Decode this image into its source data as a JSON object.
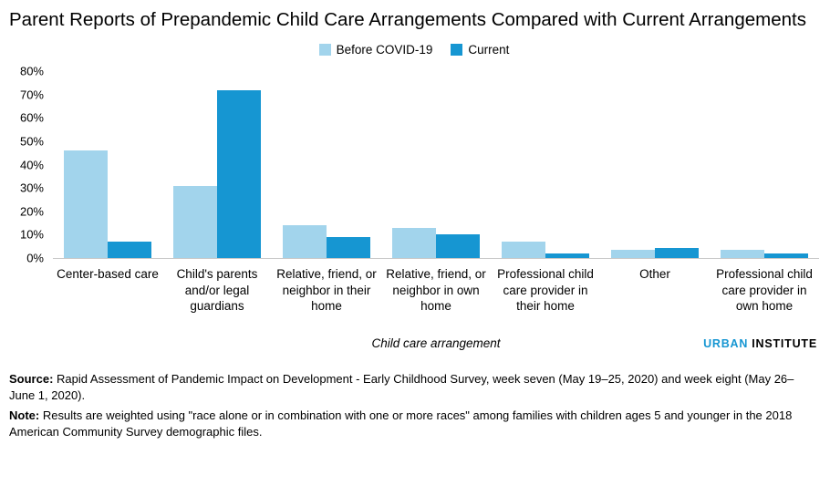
{
  "title": "Parent Reports of Prepandemic Child Care Arrangements Compared with Current Arrangements",
  "chart_data": {
    "type": "bar",
    "title": "Parent Reports of Prepandemic Child Care Arrangements Compared with Current Arrangements",
    "xlabel": "Child care arrangement",
    "ylabel": "",
    "ylim": [
      0,
      80
    ],
    "ytick_step": 10,
    "ytick_suffix": "%",
    "grid": false,
    "legend_position": "top-center",
    "categories": [
      "Center-based care",
      "Child's parents and/or legal guardians",
      "Relative, friend, or neighbor in their home",
      "Relative, friend, or neighbor in own home",
      "Professional child care provider in their home",
      "Other",
      "Professional child care provider in own home"
    ],
    "series": [
      {
        "name": "Before COVID-19",
        "color": "#a2d4ec",
        "values": [
          46,
          31,
          14,
          13,
          7,
          3.5,
          3.5
        ]
      },
      {
        "name": "Current",
        "color": "#1696d2",
        "values": [
          7,
          72,
          9,
          10,
          2,
          4.5,
          2
        ]
      }
    ]
  },
  "branding": {
    "urban": "URBAN",
    "institute": "INSTITUTE"
  },
  "notes": {
    "source_label": "Source:",
    "source_text": "Rapid Assessment of Pandemic Impact on Development - Early Childhood Survey, week seven (May 19–25, 2020) and week eight (May 26–June 1, 2020).",
    "note_label": "Note:",
    "note_text": "Results are weighted using \"race alone or in combination with one or more races\" among families with children ages 5 and younger in the 2018 American Community Survey demographic files."
  },
  "colors": {
    "before_covid": "#a2d4ec",
    "current": "#1696d2",
    "brand_blue": "#1696d2"
  }
}
